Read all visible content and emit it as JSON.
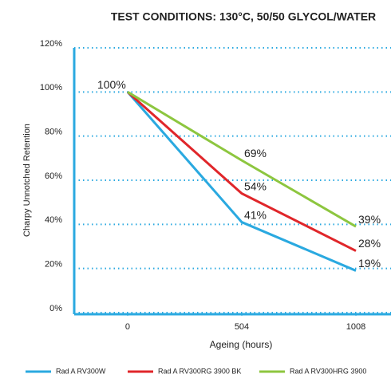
{
  "chart_data": {
    "type": "line",
    "title": "TEST CONDITIONS: 130°C, 50/50 GLYCOL/WATER",
    "x_label": "Ageing (hours)",
    "y_label": "Charpy Unnotched Retention",
    "x": [
      0,
      504,
      1008
    ],
    "xlim": [
      -236,
      1163
    ],
    "xticks": [
      0,
      504,
      1008
    ],
    "ylim": [
      0,
      120
    ],
    "yticks": [
      {
        "value": 0,
        "label": "0%"
      },
      {
        "value": 20,
        "label": "20%"
      },
      {
        "value": 40,
        "label": "40%"
      },
      {
        "value": 60,
        "label": "60%"
      },
      {
        "value": 80,
        "label": "80%"
      },
      {
        "value": 100,
        "label": "100%"
      },
      {
        "value": 120,
        "label": "120%"
      }
    ],
    "grid": true,
    "legend": "bottom",
    "series": [
      {
        "name": "Rad A RV300W",
        "color": "#2aa9e0",
        "values": [
          100,
          41,
          19
        ],
        "value_labels": [
          "100%",
          "41%",
          "19%"
        ]
      },
      {
        "name": "Rad A RV300RG 3900 BK",
        "color": "#e0262a",
        "values": [
          100,
          54,
          28
        ],
        "value_labels": [
          null,
          "54%",
          "28%"
        ]
      },
      {
        "name": "Rad A RV300HRG 3900",
        "color": "#8dc63f",
        "values": [
          100,
          69,
          39
        ],
        "value_labels": [
          null,
          "69%",
          "39%"
        ]
      }
    ]
  }
}
